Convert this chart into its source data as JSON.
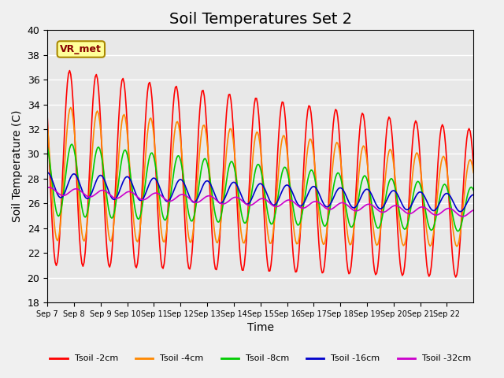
{
  "title": "Soil Temperatures Set 2",
  "xlabel": "Time",
  "ylabel": "Soil Temperature (C)",
  "ylim": [
    18,
    40
  ],
  "yticks": [
    18,
    20,
    22,
    24,
    26,
    28,
    30,
    32,
    34,
    36,
    38,
    40
  ],
  "x_labels": [
    "Sep 7",
    "Sep 8",
    "Sep 9",
    "Sep 10",
    "Sep 11",
    "Sep 12",
    "Sep 13",
    "Sep 14",
    "Sep 15",
    "Sep 16",
    "Sep 17",
    "Sep 18",
    "Sep 19",
    "Sep 20",
    "Sep 21",
    "Sep 22"
  ],
  "colors": {
    "Tsoil -2cm": "#ff0000",
    "Tsoil -4cm": "#ff8800",
    "Tsoil -8cm": "#00cc00",
    "Tsoil -16cm": "#0000cc",
    "Tsoil -32cm": "#cc00cc"
  },
  "annotation_text": "VR_met",
  "annotation_box_facecolor": "#ffff99",
  "annotation_box_edgecolor": "#aa8800",
  "annotation_text_color": "#880000",
  "background_color": "#e8e8e8",
  "fig_background_color": "#f0f0f0",
  "grid_color": "#ffffff",
  "title_fontsize": 14,
  "axis_label_fontsize": 10,
  "tick_fontsize": 9,
  "legend_fontsize": 8,
  "n_days": 16
}
